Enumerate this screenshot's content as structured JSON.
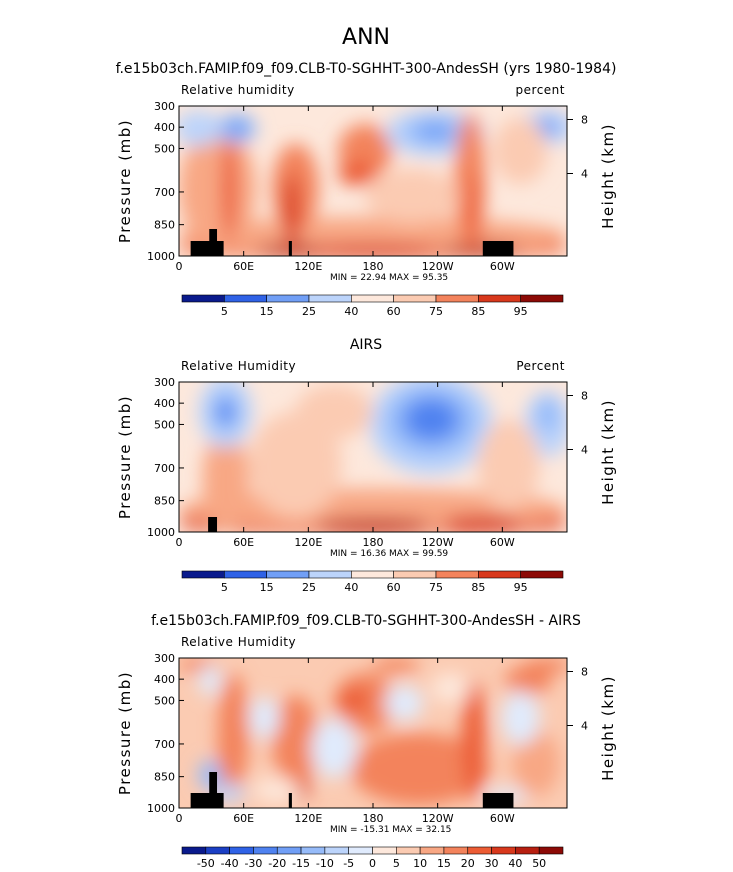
{
  "figure_title": "ANN",
  "chart_data": [
    {
      "type": "heatmap",
      "title": "f.e15b03ch.FAMIP.f09_f09.CLB-T0-SGHHT-300-AndesSH (yrs 1980-1984)",
      "left_label": "Relative humidity",
      "right_label": "percent",
      "ylabel": "Pressure (mb)",
      "ylabel_right": "Height (km)",
      "x_ticks": [
        "0",
        "60E",
        "120E",
        "180",
        "120W",
        "60W"
      ],
      "y_ticks": [
        "300",
        "400",
        "500",
        "700",
        "850",
        "1000"
      ],
      "height_ticks": [
        "8",
        "4"
      ],
      "stats_text": "MIN =   22.94   MAX =   95.35",
      "min": 22.94,
      "max": 95.35,
      "colorbar_labels": [
        "5",
        "15",
        "25",
        "40",
        "60",
        "75",
        "85",
        "95"
      ]
    },
    {
      "type": "heatmap",
      "title": "AIRS",
      "left_label": "Relative Humidity",
      "right_label": "Percent",
      "ylabel": "Pressure (mb)",
      "ylabel_right": "Height (km)",
      "x_ticks": [
        "0",
        "60E",
        "120E",
        "180",
        "120W",
        "60W"
      ],
      "y_ticks": [
        "300",
        "400",
        "500",
        "700",
        "850",
        "1000"
      ],
      "height_ticks": [
        "8",
        "4"
      ],
      "stats_text": "MIN =   16.36   MAX =   99.59",
      "min": 16.36,
      "max": 99.59,
      "colorbar_labels": [
        "5",
        "15",
        "25",
        "40",
        "60",
        "75",
        "85",
        "95"
      ]
    },
    {
      "type": "heatmap",
      "title": "f.e15b03ch.FAMIP.f09_f09.CLB-T0-SGHHT-300-AndesSH - AIRS",
      "left_label": "Relative Humidity",
      "right_label": "",
      "ylabel": "Pressure (mb)",
      "ylabel_right": "Height (km)",
      "x_ticks": [
        "0",
        "60E",
        "120E",
        "180",
        "120W",
        "60W"
      ],
      "y_ticks": [
        "300",
        "400",
        "500",
        "700",
        "850",
        "1000"
      ],
      "height_ticks": [
        "8",
        "4"
      ],
      "stats_text": "MIN =  -15.31   MAX =   32.15",
      "min": -15.31,
      "max": 32.15,
      "colorbar_labels": [
        "-50",
        "-40",
        "-30",
        "-20",
        "-15",
        "-10",
        "-5",
        "0",
        "5",
        "10",
        "15",
        "20",
        "30",
        "40",
        "50"
      ]
    }
  ],
  "colors": {
    "palette": [
      "#0a1a8c",
      "#1b3fc4",
      "#2f62e6",
      "#4f82f0",
      "#719ff6",
      "#96bbf9",
      "#bcd4fb",
      "#e0ebfd",
      "#fde8dc",
      "#fbcbb2",
      "#f8a784",
      "#f3835c",
      "#ec5c34",
      "#d8381c",
      "#b71f10",
      "#8c0a06"
    ],
    "terrain": "#000000"
  }
}
